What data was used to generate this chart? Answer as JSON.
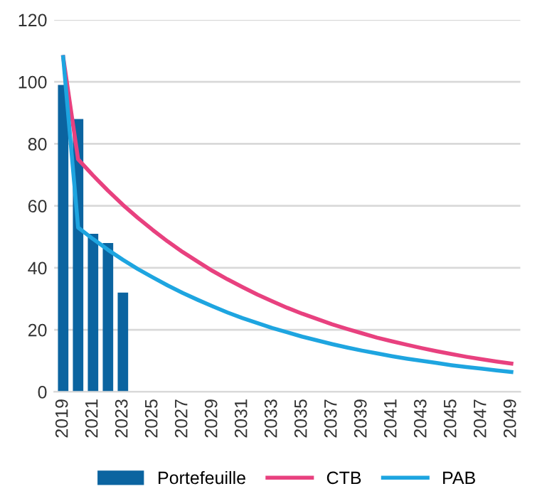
{
  "chart_data": {
    "type": "bar",
    "categories": [
      "2019",
      null,
      "2021",
      null,
      "2023",
      null,
      "2025",
      null,
      "2027",
      null,
      "2029",
      null,
      "2031",
      null,
      "2033",
      null,
      "2035",
      null,
      "2037",
      null,
      "2039",
      null,
      "2041",
      null,
      "2043",
      null,
      "2045",
      null,
      "2047",
      null,
      "2049"
    ],
    "series": [
      {
        "name": "Portefeuille",
        "color": "#0b64a0",
        "values": [
          99,
          88,
          51,
          48,
          32,
          null,
          null,
          null,
          null,
          null,
          null,
          null,
          null,
          null,
          null,
          null,
          null,
          null,
          null,
          null,
          null,
          null,
          null,
          null,
          null,
          null,
          null,
          null,
          null,
          null,
          null
        ]
      },
      {
        "name": "CTB",
        "type": "line",
        "color": "#e8417f",
        "values": [
          108,
          75,
          69.8,
          64.9,
          60.3,
          56.1,
          52.2,
          48.5,
          45.1,
          42.0,
          39.0,
          36.3,
          33.8,
          31.4,
          29.2,
          27.1,
          25.2,
          23.5,
          21.8,
          20.3,
          18.9,
          17.5,
          16.3,
          15.2,
          14.1,
          13.1,
          12.2,
          11.3,
          10.5,
          9.8,
          9.1
        ]
      },
      {
        "name": "PAB",
        "type": "line",
        "color": "#1ea5e0",
        "values": [
          108,
          53,
          49.3,
          45.8,
          42.6,
          39.6,
          36.9,
          34.3,
          31.9,
          29.7,
          27.6,
          25.6,
          23.8,
          22.2,
          20.6,
          19.2,
          17.8,
          16.6,
          15.4,
          14.3,
          13.3,
          12.4,
          11.5,
          10.7,
          10.0,
          9.3,
          8.6,
          8.0,
          7.5,
          6.9,
          6.4
        ]
      }
    ],
    "ylim": [
      0,
      120
    ],
    "yticks": [
      0,
      20,
      40,
      60,
      80,
      100,
      120
    ],
    "grid": "y",
    "legend": "bottom",
    "marker": "none",
    "line_style": "solid"
  }
}
